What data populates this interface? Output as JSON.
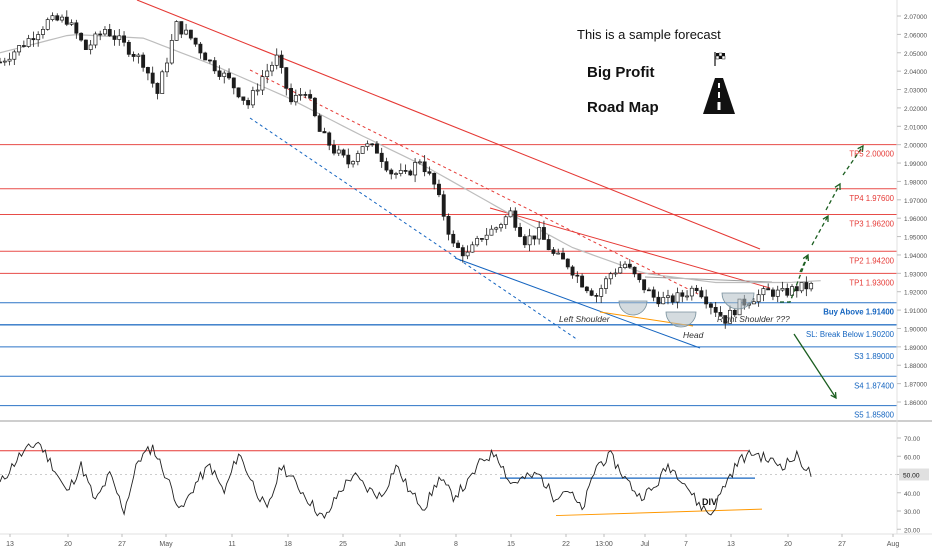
{
  "header": {
    "line1": "This is a sample forecast",
    "line2": "Big Profit",
    "line3": "Road Map"
  },
  "annotations": {
    "left_shoulder": "Left Shoulder",
    "head": "Head",
    "right_shoulder": "Right Shoulder ???",
    "div": "DIV"
  },
  "colors": {
    "up": "#1c1c1c",
    "down": "#1c1c1c",
    "resistance": "#e53935",
    "support": "#1565c0",
    "ma": "#bdbdbd",
    "arrow": "#1b5e20",
    "neckline_fill": "#b0bec5",
    "head_line": "#ff9800"
  },
  "chart_data": [
    {
      "type": "candlestick",
      "title": "",
      "y_axis_ticks": [
        "2.07000",
        "2.06000",
        "2.05000",
        "2.04000",
        "2.03000",
        "2.02000",
        "2.01000",
        "2.00000",
        "1.99000",
        "1.98000",
        "1.97000",
        "1.96000",
        "1.95000",
        "1.94000",
        "1.93000",
        "1.92000",
        "1.91000",
        "1.90000",
        "1.89000",
        "1.88000",
        "1.87000",
        "1.86000"
      ],
      "ylim": [
        1.855,
        2.075
      ],
      "x_axis_ticks": [
        "13",
        "20",
        "27",
        "May",
        "11",
        "18",
        "25",
        "Jun",
        "8",
        "15",
        "22",
        "13:00",
        "Jul",
        "7",
        "13",
        "20",
        "27",
        "Aug"
      ],
      "price_path": [
        [
          0,
          2.045
        ],
        [
          5,
          2.055
        ],
        [
          10,
          2.067
        ],
        [
          14,
          2.068
        ],
        [
          18,
          2.052
        ],
        [
          22,
          2.063
        ],
        [
          27,
          2.052
        ],
        [
          30,
          2.045
        ],
        [
          33,
          2.028
        ],
        [
          37,
          2.065
        ],
        [
          40,
          2.058
        ],
        [
          44,
          2.045
        ],
        [
          48,
          2.035
        ],
        [
          52,
          2.022
        ],
        [
          55,
          2.037
        ],
        [
          58,
          2.047
        ],
        [
          61,
          2.023
        ],
        [
          64,
          2.03
        ],
        [
          67,
          2.007
        ],
        [
          70,
          1.997
        ],
        [
          73,
          1.99
        ],
        [
          76,
          2.0
        ],
        [
          79,
          1.997
        ],
        [
          82,
          1.985
        ],
        [
          85,
          1.983
        ],
        [
          88,
          1.992
        ],
        [
          91,
          1.978
        ],
        [
          93,
          1.962
        ],
        [
          95,
          1.945
        ],
        [
          98,
          1.94
        ],
        [
          101,
          1.95
        ],
        [
          104,
          1.955
        ],
        [
          107,
          1.963
        ],
        [
          110,
          1.948
        ],
        [
          113,
          1.952
        ],
        [
          116,
          1.94
        ],
        [
          119,
          1.935
        ],
        [
          122,
          1.925
        ],
        [
          125,
          1.918
        ],
        [
          128,
          1.93
        ],
        [
          131,
          1.935
        ],
        [
          134,
          1.925
        ],
        [
          137,
          1.917
        ],
        [
          140,
          1.915
        ],
        [
          143,
          1.918
        ],
        [
          146,
          1.923
        ],
        [
          149,
          1.913
        ],
        [
          152,
          1.905
        ],
        [
          155,
          1.913
        ],
        [
          158,
          1.917
        ],
        [
          161,
          1.92
        ],
        [
          164,
          1.919
        ],
        [
          167,
          1.922
        ],
        [
          170,
          1.923
        ]
      ],
      "moving_average": [
        [
          0,
          2.05
        ],
        [
          15,
          2.06
        ],
        [
          30,
          2.058
        ],
        [
          45,
          2.043
        ],
        [
          60,
          2.026
        ],
        [
          75,
          2.006
        ],
        [
          90,
          1.987
        ],
        [
          105,
          1.965
        ],
        [
          120,
          1.944
        ],
        [
          135,
          1.93
        ],
        [
          150,
          1.925
        ],
        [
          165,
          1.925
        ],
        [
          172,
          1.926
        ]
      ],
      "levels": [
        {
          "label": "TP5",
          "value": "2.00000",
          "price": 2.0,
          "kind": "target"
        },
        {
          "label": "TP4",
          "value": "1.97600",
          "price": 1.976,
          "kind": "target"
        },
        {
          "label": "TP3",
          "value": "1.96200",
          "price": 1.962,
          "kind": "target"
        },
        {
          "label": "TP2",
          "value": "1.94200",
          "price": 1.942,
          "kind": "target"
        },
        {
          "label": "TP1",
          "value": "1.93000",
          "price": 1.93,
          "kind": "target"
        },
        {
          "label": "Buy Above",
          "value": "1.91400",
          "price": 1.914,
          "kind": "entry"
        },
        {
          "label": "SL: Break Below",
          "value": "1.90200",
          "price": 1.902,
          "kind": "stop"
        },
        {
          "label": "S3",
          "value": "1.89000",
          "price": 1.89,
          "kind": "support"
        },
        {
          "label": "S4",
          "value": "1.87400",
          "price": 1.874,
          "kind": "support"
        },
        {
          "label": "S5",
          "value": "1.85800",
          "price": 1.858,
          "kind": "support"
        }
      ]
    },
    {
      "type": "line",
      "title": "",
      "y_axis_ticks": [
        "70.00",
        "60.00",
        "50.00",
        "40.00",
        "30.00",
        "20.00"
      ],
      "ylim": [
        15,
        76
      ],
      "current_value": "50.00",
      "series_path": [
        [
          0,
          45
        ],
        [
          4,
          60
        ],
        [
          8,
          68
        ],
        [
          11,
          55
        ],
        [
          14,
          40
        ],
        [
          17,
          55
        ],
        [
          20,
          35
        ],
        [
          23,
          50
        ],
        [
          26,
          30
        ],
        [
          29,
          58
        ],
        [
          32,
          65
        ],
        [
          35,
          48
        ],
        [
          38,
          30
        ],
        [
          41,
          45
        ],
        [
          44,
          55
        ],
        [
          47,
          40
        ],
        [
          50,
          62
        ],
        [
          53,
          45
        ],
        [
          56,
          30
        ],
        [
          59,
          55
        ],
        [
          62,
          45
        ],
        [
          65,
          35
        ],
        [
          68,
          25
        ],
        [
          71,
          40
        ],
        [
          74,
          50
        ],
        [
          77,
          42
        ],
        [
          80,
          38
        ],
        [
          83,
          55
        ],
        [
          86,
          40
        ],
        [
          89,
          32
        ],
        [
          92,
          48
        ],
        [
          95,
          38
        ],
        [
          98,
          45
        ],
        [
          101,
          58
        ],
        [
          104,
          62
        ],
        [
          107,
          45
        ],
        [
          110,
          48
        ],
        [
          113,
          50
        ],
        [
          116,
          38
        ],
        [
          119,
          42
        ],
        [
          122,
          30
        ],
        [
          125,
          55
        ],
        [
          128,
          60
        ],
        [
          131,
          48
        ],
        [
          134,
          38
        ],
        [
          137,
          42
        ],
        [
          140,
          55
        ],
        [
          143,
          48
        ],
        [
          146,
          35
        ],
        [
          149,
          28
        ],
        [
          152,
          45
        ],
        [
          155,
          58
        ],
        [
          158,
          62
        ],
        [
          161,
          58
        ],
        [
          164,
          55
        ],
        [
          167,
          60
        ],
        [
          170,
          50
        ]
      ],
      "hlines": [
        63,
        48
      ]
    }
  ]
}
